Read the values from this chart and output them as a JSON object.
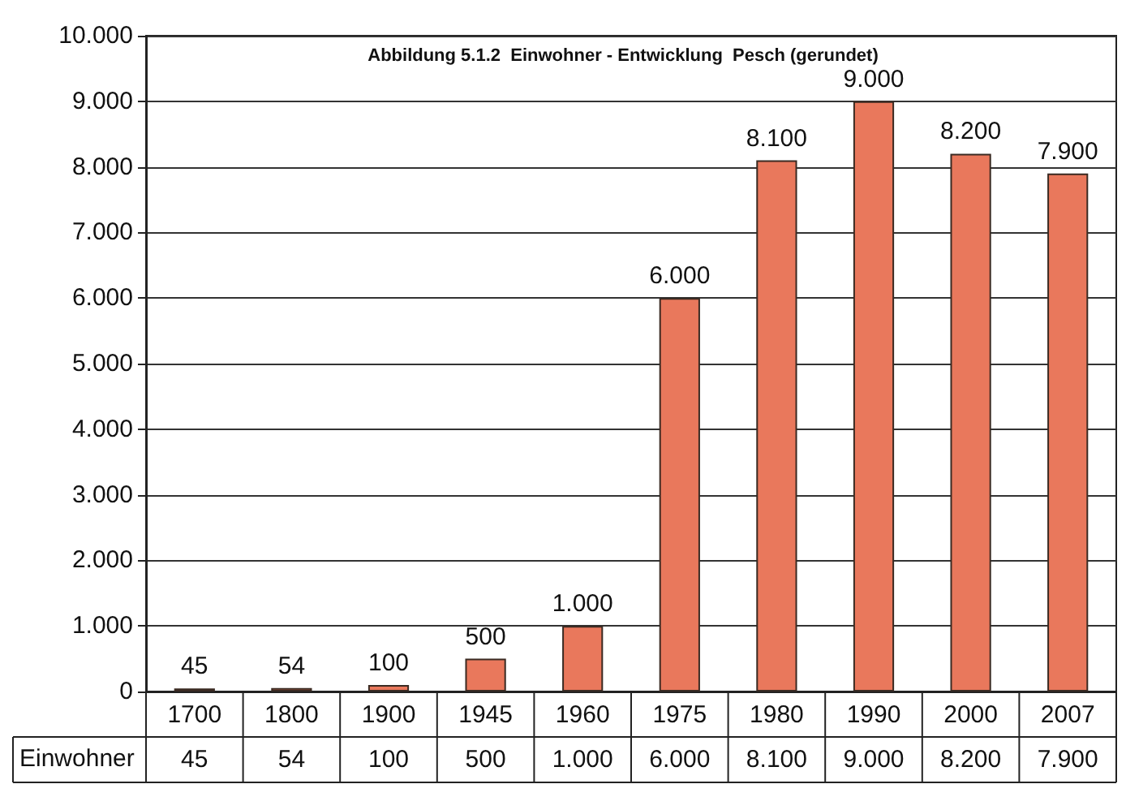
{
  "chart_data": {
    "type": "bar",
    "title": "Abbildung 5.1.2  Einwohner - Entwicklung  Pesch (gerundet)",
    "categories": [
      "1700",
      "1800",
      "1900",
      "1945",
      "1960",
      "1975",
      "1980",
      "1990",
      "2000",
      "2007"
    ],
    "series": [
      {
        "name": "Einwohner",
        "color": "#e9785c",
        "values": [
          45,
          54,
          100,
          500,
          1000,
          6000,
          8100,
          9000,
          8200,
          7900
        ],
        "value_labels": [
          "45",
          "54",
          "100",
          "500",
          "1.000",
          "6.000",
          "8.100",
          "9.000",
          "8.200",
          "7.900"
        ]
      }
    ],
    "ylim": [
      0,
      10000
    ],
    "yticks": [
      {
        "value": 0,
        "label": "0"
      },
      {
        "value": 1000,
        "label": "1.000"
      },
      {
        "value": 2000,
        "label": "2.000"
      },
      {
        "value": 3000,
        "label": "3.000"
      },
      {
        "value": 4000,
        "label": "4.000"
      },
      {
        "value": 5000,
        "label": "5.000"
      },
      {
        "value": 6000,
        "label": "6.000"
      },
      {
        "value": 7000,
        "label": "7.000"
      },
      {
        "value": 8000,
        "label": "8.000"
      },
      {
        "value": 9000,
        "label": "9.000"
      },
      {
        "value": 10000,
        "label": "10.000"
      }
    ],
    "grid": "y",
    "legend": false
  }
}
